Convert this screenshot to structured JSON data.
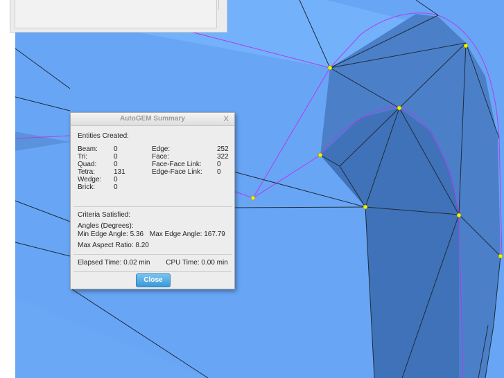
{
  "dialog": {
    "title": "AutoGEM Summary",
    "close_x": "X",
    "entities_heading": "Entities Created:",
    "left_stats": [
      {
        "label": "Beam:",
        "value": "0"
      },
      {
        "label": "Tri:",
        "value": "0"
      },
      {
        "label": "Quad:",
        "value": "0"
      },
      {
        "label": "Tetra:",
        "value": "131"
      },
      {
        "label": "Wedge:",
        "value": "0"
      },
      {
        "label": "Brick:",
        "value": "0"
      }
    ],
    "right_stats": [
      {
        "label": "Edge:",
        "value": "252"
      },
      {
        "label": "Face:",
        "value": "322"
      },
      {
        "label": "Face-Face Link:",
        "value": "0"
      },
      {
        "label": "Edge-Face Link:",
        "value": "0"
      }
    ],
    "criteria_heading": "Criteria Satisfied:",
    "angles_heading": "Angles (Degrees):",
    "min_edge_angle": "Min Edge Angle:  5.36",
    "max_edge_angle": "Max Edge Angle: 167.79",
    "max_aspect_ratio": "Max Aspect Ratio: 8.20",
    "elapsed_time": "Elapsed Time:  0.02 min",
    "cpu_time": "CPU Time:  0.00 min",
    "close_label": "Close"
  },
  "colors": {
    "model_blue": "#6aa8f6",
    "model_blue_dark": "#4a7fc4",
    "mesh_line": "#1f2b3a",
    "boundary_line": "#b03cf0",
    "node_yellow": "#f5f000",
    "dialog_bg": "#ededed",
    "close_button": "#4aa6e0"
  }
}
